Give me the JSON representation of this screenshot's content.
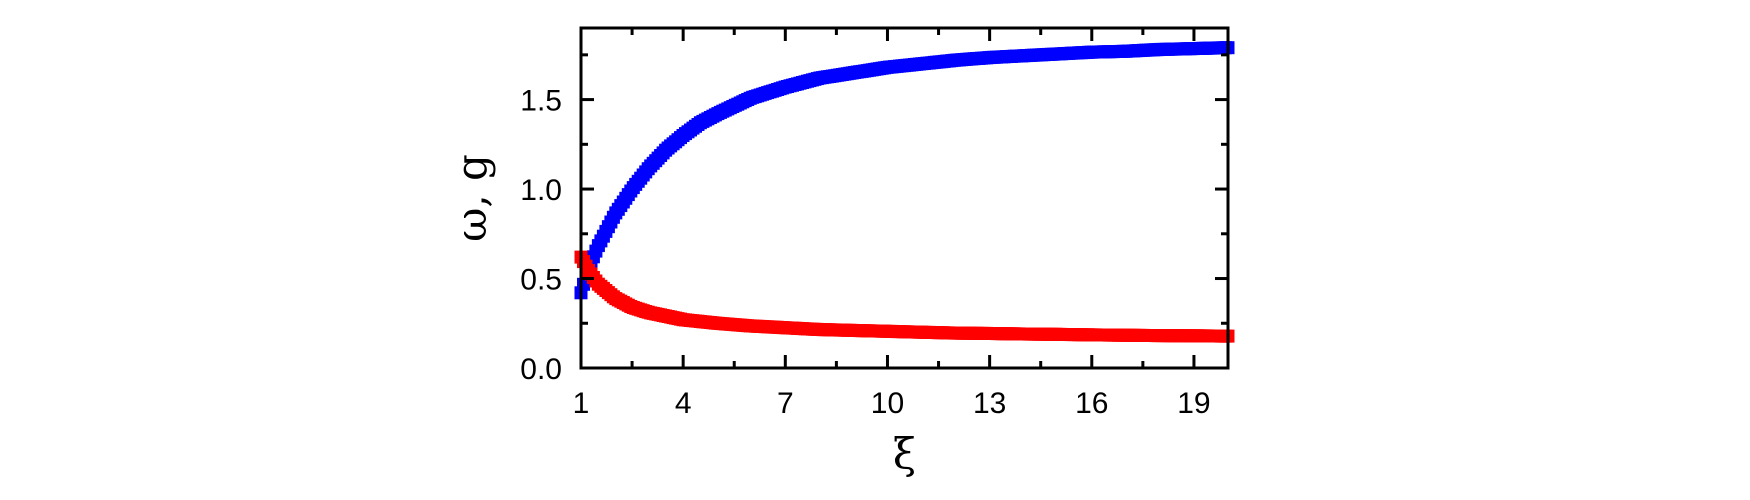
{
  "chart_data": {
    "type": "scatter",
    "title": "",
    "xlabel": "ξ",
    "ylabel": "ω, g",
    "xlim": [
      1,
      20
    ],
    "ylim": [
      0,
      1.9
    ],
    "x_ticks": [
      1,
      4,
      7,
      10,
      13,
      16,
      19
    ],
    "x_minor_ticks": [
      2.5,
      5.5,
      8.5,
      11.5,
      14.5,
      17.5
    ],
    "y_ticks": [
      0.0,
      0.5,
      1.0,
      1.5
    ],
    "y_minor_ticks": [
      0.25,
      0.75,
      1.25,
      1.75
    ],
    "grid": false,
    "legend": "none",
    "series": [
      {
        "color": "#0000ff",
        "marker": "square",
        "x": [
          1.0,
          1.2,
          1.5,
          2.0,
          2.5,
          3.0,
          3.5,
          4.0,
          4.5,
          5.0,
          6.0,
          7.0,
          8.0,
          9.0,
          10.0,
          11.0,
          12.0,
          13.0,
          14.0,
          15.0,
          16.0,
          17.0,
          18.0,
          19.0,
          20.0
        ],
        "y": [
          0.42,
          0.55,
          0.68,
          0.86,
          1.0,
          1.12,
          1.22,
          1.3,
          1.37,
          1.42,
          1.51,
          1.57,
          1.62,
          1.65,
          1.68,
          1.7,
          1.72,
          1.735,
          1.745,
          1.755,
          1.765,
          1.77,
          1.78,
          1.785,
          1.79
        ]
      },
      {
        "color": "#ff0000",
        "marker": "square",
        "x": [
          1.0,
          1.2,
          1.5,
          2.0,
          2.5,
          3.0,
          3.5,
          4.0,
          4.5,
          5.0,
          6.0,
          7.0,
          8.0,
          9.0,
          10.0,
          11.0,
          12.0,
          13.0,
          14.0,
          15.0,
          16.0,
          17.0,
          18.0,
          19.0,
          20.0
        ],
        "y": [
          0.62,
          0.55,
          0.47,
          0.39,
          0.34,
          0.31,
          0.29,
          0.27,
          0.26,
          0.25,
          0.235,
          0.225,
          0.215,
          0.21,
          0.205,
          0.2,
          0.195,
          0.193,
          0.19,
          0.188,
          0.185,
          0.183,
          0.181,
          0.18,
          0.178
        ]
      }
    ]
  }
}
